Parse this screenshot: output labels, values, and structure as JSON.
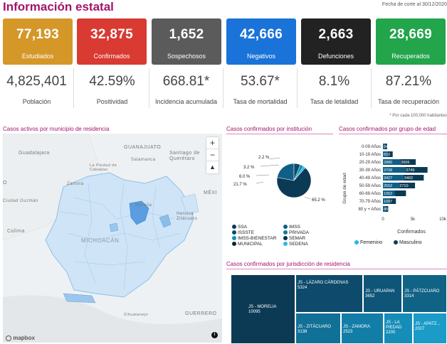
{
  "page": {
    "title": "Información estatal",
    "cutoff": "Fecha de corte al 30/12/2020",
    "footnote": "* Por cada 100,000 habitantes"
  },
  "cards": [
    {
      "value": "77,193",
      "label": "Estudiados",
      "color": "#d49728"
    },
    {
      "value": "32,875",
      "label": "Confirmados",
      "color": "#d93a32"
    },
    {
      "value": "1,652",
      "label": "Sospechosos",
      "color": "#5b5b5b"
    },
    {
      "value": "42,666",
      "label": "Negativos",
      "color": "#1a73d8"
    },
    {
      "value": "2,663",
      "label": "Defunciones",
      "color": "#222222"
    },
    {
      "value": "28,669",
      "label": "Recuperados",
      "color": "#22a54b"
    }
  ],
  "stats": [
    {
      "value": "4,825,401",
      "label": "Población"
    },
    {
      "value": "42.59%",
      "label": "Positividad"
    },
    {
      "value": "668.81*",
      "label": "Incidencia acumulada"
    },
    {
      "value": "53.67*",
      "label": "Tasa de mortalidad"
    },
    {
      "value": "8.1%",
      "label": "Tasa de letalidad"
    },
    {
      "value": "87.21%",
      "label": "Tasa de recuperación"
    }
  ],
  "map": {
    "title": "Casos activos por municipio de residencia",
    "labels": [
      "GUANAJUATO",
      "Guadalajara",
      "Salamanca",
      "Santiago de Querétaro",
      "La Piedad de Cabadas",
      "Ciudad Guzmán",
      "Zamora",
      "Colima",
      "MICHOACÁN",
      "Morelia",
      "Heroica Zitácuaro",
      "MÉXI",
      "GUERRERO",
      "Zihuatanejo",
      "O"
    ],
    "zoom_in": "+",
    "zoom_out": "−",
    "compass": "▲",
    "attribution": "mapbox",
    "info": "i"
  },
  "inst": {
    "title": "Casos confirmados por institución",
    "slice_labels": [
      "2.2 %",
      "3.2 %",
      "6.0 %",
      "21.7 %",
      "65.2 %"
    ],
    "legend": [
      {
        "name": "SSA",
        "color": "#0b3a55"
      },
      {
        "name": "IMSS",
        "color": "#0f5f86"
      },
      {
        "name": "ISSSTE",
        "color": "#0d4a6a"
      },
      {
        "name": "PRIVADA",
        "color": "#127a9e"
      },
      {
        "name": "IMSS-BIENESTAR",
        "color": "#1490b5"
      },
      {
        "name": "SEMAR",
        "color": "#0a2f45"
      },
      {
        "name": "MUNICIPAL",
        "color": "#0d2636"
      },
      {
        "name": "SEDENA",
        "color": "#2bb8e6"
      }
    ]
  },
  "age": {
    "title": "Casos confirmados por grupo de edad",
    "ylabel": "Grupo de edad",
    "xlabel": "Confirmados",
    "ticks": [
      "0",
      "5k",
      "10k"
    ],
    "legend": [
      {
        "name": "Femenino",
        "color": "#29b6e8"
      },
      {
        "name": "Masculino",
        "color": "#0b3a55"
      }
    ]
  },
  "juris": {
    "title": "Casos confirmados por jurisdicción de residencia",
    "cells": [
      {
        "name": "JS - MORELIA",
        "value": "10095"
      },
      {
        "name": "JS - LÁZARO CÁRDENAS",
        "value": "5324"
      },
      {
        "name": "JS - URUAPAN",
        "value": "3652"
      },
      {
        "name": "JS - PÁTZCUARO",
        "value": "3314"
      },
      {
        "name": "JS - ZITÁCUARO",
        "value": "3138"
      },
      {
        "name": "JS - ZAMORA",
        "value": "2523"
      },
      {
        "name": "JS - LA PIEDAD",
        "value": "2200"
      },
      {
        "name": "JS - APATZ...",
        "value": "2027"
      }
    ]
  },
  "chart_data": [
    {
      "type": "pie",
      "title": "Casos confirmados por institución",
      "categories": [
        "SSA",
        "IMSS",
        "ISSSTE",
        "IMSS-BIENESTAR",
        "SEDENA"
      ],
      "values": [
        65.2,
        21.7,
        6.0,
        3.2,
        2.2
      ]
    },
    {
      "type": "bar",
      "title": "Casos confirmados por grupo de edad",
      "orientation": "horizontal",
      "stacked": true,
      "categories": [
        "0-09 Años",
        "10-19 Años",
        "20-29 Años",
        "30-39 Años",
        "40-49 Años",
        "50-59 Años",
        "60-69 Años",
        "70-79 Años",
        "80 y + Años"
      ],
      "series": [
        {
          "name": "Femenino",
          "values": [
            349,
            810,
            2880,
            3708,
            3427,
            2652,
            1952,
            1097,
            457
          ]
        },
        {
          "name": "Masculino",
          "values": [
            339,
            820,
            2606,
            3749,
            3402,
            2710,
            1900,
            1070,
            420
          ]
        }
      ],
      "xlabel": "Confirmados",
      "ylabel": "Grupo de edad",
      "xlim": [
        0,
        10000
      ]
    }
  ]
}
